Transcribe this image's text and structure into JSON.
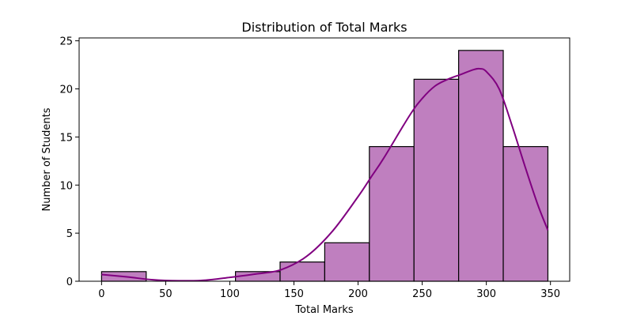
{
  "chart_data": {
    "type": "bar",
    "title": "Distribution of Total Marks",
    "xlabel": "Total Marks",
    "ylabel": "Number of Students",
    "xlim": [
      -17.5,
      365
    ],
    "ylim": [
      0,
      25.3
    ],
    "xticks": [
      0,
      50,
      100,
      150,
      200,
      250,
      300,
      350
    ],
    "yticks": [
      0,
      5,
      10,
      15,
      20,
      25
    ],
    "grid": false,
    "bar_color": "#bf7fbf",
    "bar_edge_color": "#000000",
    "kde_color": "#800080",
    "bins": [
      {
        "start": 0,
        "end": 34.8,
        "count": 1
      },
      {
        "start": 34.8,
        "end": 69.6,
        "count": 0
      },
      {
        "start": 69.6,
        "end": 104.4,
        "count": 0
      },
      {
        "start": 104.4,
        "end": 139.2,
        "count": 1
      },
      {
        "start": 139.2,
        "end": 174,
        "count": 2
      },
      {
        "start": 174,
        "end": 208.8,
        "count": 4
      },
      {
        "start": 208.8,
        "end": 243.6,
        "count": 14
      },
      {
        "start": 243.6,
        "end": 278.4,
        "count": 21
      },
      {
        "start": 278.4,
        "end": 313.2,
        "count": 24
      },
      {
        "start": 313.2,
        "end": 348,
        "count": 14
      }
    ],
    "kde": {
      "x": [
        0,
        20,
        40,
        60,
        80,
        100,
        120,
        140,
        160,
        180,
        200,
        210,
        220,
        240,
        250,
        260,
        270,
        280,
        290,
        295,
        300,
        310,
        320,
        330,
        340,
        348
      ],
      "y": [
        0.7,
        0.45,
        0.15,
        0.05,
        0.1,
        0.4,
        0.75,
        1.2,
        2.6,
        5.2,
        8.8,
        10.8,
        12.8,
        17.2,
        19.0,
        20.3,
        21.0,
        21.5,
        22.0,
        22.1,
        21.8,
        20.0,
        16.2,
        12.0,
        8.0,
        5.3
      ]
    }
  }
}
